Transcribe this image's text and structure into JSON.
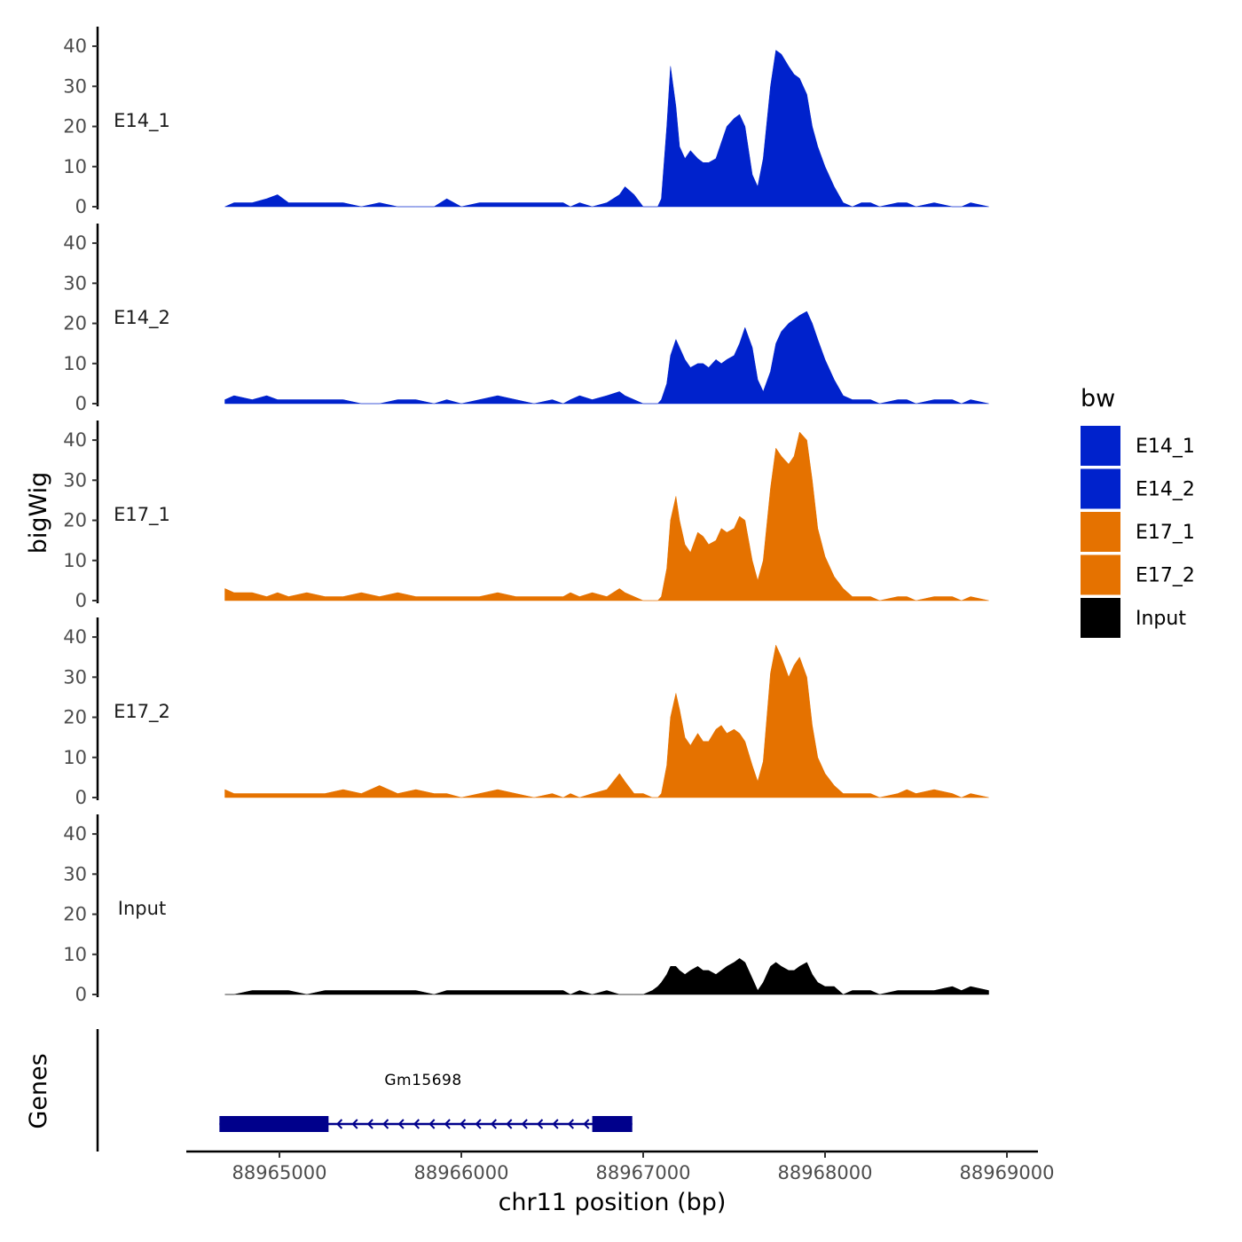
{
  "chart_data": {
    "type": "area",
    "title": "",
    "xlabel": "chr11 position (bp)",
    "ylabel": "bigWig",
    "genes_label": "Genes",
    "xlim": [
      88964470,
      88969150
    ],
    "ylim": [
      0,
      44
    ],
    "x_ticks": [
      88965000,
      88966000,
      88967000,
      88968000,
      88969000
    ],
    "x_tick_labels": [
      "88965000",
      "88966000",
      "88967000",
      "88968000",
      "88969000"
    ],
    "y_ticks": [
      0,
      10,
      20,
      30,
      40
    ],
    "y_tick_labels": [
      "0",
      "10",
      "20",
      "30",
      "40"
    ],
    "legend": {
      "title": "bw",
      "position": "right",
      "entries": [
        {
          "label": "E14_1",
          "color": "#0022CC"
        },
        {
          "label": "E14_2",
          "color": "#0022CC"
        },
        {
          "label": "E17_1",
          "color": "#E57200"
        },
        {
          "label": "E17_2",
          "color": "#E57200"
        },
        {
          "label": "Input",
          "color": "#000000"
        }
      ]
    },
    "series": [
      {
        "name": "E14_1",
        "color": "#0022CC",
        "x": [
          88964700,
          88964750,
          88964850,
          88964930,
          88964990,
          88965050,
          88965150,
          88965250,
          88965350,
          88965450,
          88965550,
          88965650,
          88965750,
          88965850,
          88965920,
          88966000,
          88966100,
          88966200,
          88966300,
          88966400,
          88966500,
          88966560,
          88966600,
          88966650,
          88966720,
          88966800,
          88966870,
          88966900,
          88966950,
          88967000,
          88967050,
          88967080,
          88967100,
          88967130,
          88967150,
          88967180,
          88967200,
          88967230,
          88967260,
          88967300,
          88967330,
          88967360,
          88967400,
          88967430,
          88967460,
          88967500,
          88967530,
          88967560,
          88967600,
          88967630,
          88967660,
          88967700,
          88967730,
          88967760,
          88967800,
          88967830,
          88967860,
          88967900,
          88967930,
          88967960,
          88968000,
          88968050,
          88968100,
          88968150,
          88968200,
          88968250,
          88968300,
          88968400,
          88968450,
          88968500,
          88968600,
          88968700,
          88968750,
          88968800,
          88968900
        ],
        "values": [
          0,
          1,
          1,
          2,
          3,
          1,
          1,
          1,
          1,
          0,
          1,
          0,
          0,
          0,
          2,
          0,
          1,
          1,
          1,
          1,
          1,
          1,
          0,
          1,
          0,
          1,
          3,
          5,
          3,
          0,
          0,
          0,
          2,
          20,
          35,
          25,
          15,
          12,
          14,
          12,
          11,
          11,
          12,
          16,
          20,
          22,
          23,
          20,
          8,
          5,
          12,
          30,
          39,
          38,
          35,
          33,
          32,
          28,
          20,
          15,
          10,
          5,
          1,
          0,
          1,
          1,
          0,
          1,
          1,
          0,
          1,
          0,
          0,
          1,
          0
        ]
      },
      {
        "name": "E14_2",
        "color": "#0022CC",
        "x": [
          88964700,
          88964750,
          88964850,
          88964930,
          88964990,
          88965050,
          88965150,
          88965250,
          88965350,
          88965450,
          88965550,
          88965650,
          88965750,
          88965850,
          88965920,
          88966000,
          88966100,
          88966200,
          88966300,
          88966400,
          88966500,
          88966560,
          88966600,
          88966650,
          88966720,
          88966800,
          88966870,
          88966900,
          88966950,
          88967000,
          88967050,
          88967080,
          88967100,
          88967130,
          88967150,
          88967180,
          88967200,
          88967230,
          88967260,
          88967300,
          88967330,
          88967360,
          88967400,
          88967430,
          88967460,
          88967500,
          88967530,
          88967560,
          88967600,
          88967630,
          88967660,
          88967700,
          88967730,
          88967760,
          88967800,
          88967830,
          88967860,
          88967900,
          88967930,
          88967960,
          88968000,
          88968050,
          88968100,
          88968150,
          88968200,
          88968250,
          88968300,
          88968400,
          88968450,
          88968500,
          88968600,
          88968700,
          88968750,
          88968800,
          88968900
        ],
        "values": [
          1,
          2,
          1,
          2,
          1,
          1,
          1,
          1,
          1,
          0,
          0,
          1,
          1,
          0,
          1,
          0,
          1,
          2,
          1,
          0,
          1,
          0,
          1,
          2,
          1,
          2,
          3,
          2,
          1,
          0,
          0,
          0,
          1,
          5,
          12,
          16,
          14,
          11,
          9,
          10,
          10,
          9,
          11,
          10,
          11,
          12,
          15,
          19,
          14,
          6,
          3,
          8,
          15,
          18,
          20,
          21,
          22,
          23,
          20,
          16,
          11,
          6,
          2,
          1,
          1,
          1,
          0,
          1,
          1,
          0,
          1,
          1,
          0,
          1,
          0
        ]
      },
      {
        "name": "E17_1",
        "color": "#E57200",
        "x": [
          88964700,
          88964750,
          88964850,
          88964930,
          88964990,
          88965050,
          88965150,
          88965250,
          88965350,
          88965450,
          88965550,
          88965650,
          88965750,
          88965850,
          88965920,
          88966000,
          88966100,
          88966200,
          88966300,
          88966400,
          88966500,
          88966560,
          88966600,
          88966650,
          88966720,
          88966800,
          88966870,
          88966900,
          88966950,
          88967000,
          88967050,
          88967080,
          88967100,
          88967130,
          88967150,
          88967180,
          88967200,
          88967230,
          88967260,
          88967300,
          88967330,
          88967360,
          88967400,
          88967430,
          88967460,
          88967500,
          88967530,
          88967560,
          88967600,
          88967630,
          88967660,
          88967700,
          88967730,
          88967760,
          88967800,
          88967830,
          88967860,
          88967900,
          88967930,
          88967960,
          88968000,
          88968050,
          88968100,
          88968150,
          88968200,
          88968250,
          88968300,
          88968400,
          88968450,
          88968500,
          88968600,
          88968700,
          88968750,
          88968800,
          88968900
        ],
        "values": [
          3,
          2,
          2,
          1,
          2,
          1,
          2,
          1,
          1,
          2,
          1,
          2,
          1,
          1,
          1,
          1,
          1,
          2,
          1,
          1,
          1,
          1,
          2,
          1,
          2,
          1,
          3,
          2,
          1,
          0,
          0,
          0,
          1,
          8,
          20,
          26,
          20,
          14,
          12,
          17,
          16,
          14,
          15,
          18,
          17,
          18,
          21,
          20,
          10,
          5,
          10,
          28,
          38,
          36,
          34,
          36,
          42,
          40,
          30,
          18,
          11,
          6,
          3,
          1,
          1,
          1,
          0,
          1,
          1,
          0,
          1,
          1,
          0,
          1,
          0
        ]
      },
      {
        "name": "E17_2",
        "color": "#E57200",
        "x": [
          88964700,
          88964750,
          88964850,
          88964930,
          88964990,
          88965050,
          88965150,
          88965250,
          88965350,
          88965450,
          88965550,
          88965650,
          88965750,
          88965850,
          88965920,
          88966000,
          88966100,
          88966200,
          88966300,
          88966400,
          88966500,
          88966560,
          88966600,
          88966650,
          88966720,
          88966800,
          88966870,
          88966900,
          88966950,
          88967000,
          88967050,
          88967080,
          88967100,
          88967130,
          88967150,
          88967180,
          88967200,
          88967230,
          88967260,
          88967300,
          88967330,
          88967360,
          88967400,
          88967430,
          88967460,
          88967500,
          88967530,
          88967560,
          88967600,
          88967630,
          88967660,
          88967700,
          88967730,
          88967760,
          88967800,
          88967830,
          88967860,
          88967900,
          88967930,
          88967960,
          88968000,
          88968050,
          88968100,
          88968150,
          88968200,
          88968250,
          88968300,
          88968400,
          88968450,
          88968500,
          88968600,
          88968700,
          88968750,
          88968800,
          88968900
        ],
        "values": [
          2,
          1,
          1,
          1,
          1,
          1,
          1,
          1,
          2,
          1,
          3,
          1,
          2,
          1,
          1,
          0,
          1,
          2,
          1,
          0,
          1,
          0,
          1,
          0,
          1,
          2,
          6,
          4,
          1,
          1,
          0,
          0,
          1,
          8,
          20,
          26,
          22,
          15,
          13,
          16,
          14,
          14,
          17,
          18,
          16,
          17,
          16,
          14,
          8,
          4,
          9,
          31,
          38,
          35,
          30,
          33,
          35,
          30,
          18,
          10,
          6,
          3,
          1,
          1,
          1,
          1,
          0,
          1,
          2,
          1,
          2,
          1,
          0,
          1,
          0
        ]
      },
      {
        "name": "Input",
        "color": "#000000",
        "x": [
          88964700,
          88964750,
          88964850,
          88964930,
          88964990,
          88965050,
          88965150,
          88965250,
          88965350,
          88965450,
          88965550,
          88965650,
          88965750,
          88965850,
          88965920,
          88966000,
          88966100,
          88966200,
          88966300,
          88966400,
          88966500,
          88966560,
          88966600,
          88966650,
          88966720,
          88966800,
          88966870,
          88966900,
          88966950,
          88967000,
          88967050,
          88967080,
          88967100,
          88967130,
          88967150,
          88967180,
          88967200,
          88967230,
          88967260,
          88967300,
          88967330,
          88967360,
          88967400,
          88967430,
          88967460,
          88967500,
          88967530,
          88967560,
          88967600,
          88967630,
          88967660,
          88967700,
          88967730,
          88967760,
          88967800,
          88967830,
          88967860,
          88967900,
          88967930,
          88967960,
          88968000,
          88968050,
          88968100,
          88968150,
          88968200,
          88968250,
          88968300,
          88968400,
          88968450,
          88968500,
          88968600,
          88968700,
          88968750,
          88968800,
          88968900
        ],
        "values": [
          0,
          0,
          1,
          1,
          1,
          1,
          0,
          1,
          1,
          1,
          1,
          1,
          1,
          0,
          1,
          1,
          1,
          1,
          1,
          1,
          1,
          1,
          0,
          1,
          0,
          1,
          0,
          0,
          0,
          0,
          1,
          2,
          3,
          5,
          7,
          7,
          6,
          5,
          6,
          7,
          6,
          6,
          5,
          6,
          7,
          8,
          9,
          8,
          4,
          1,
          3,
          7,
          8,
          7,
          6,
          6,
          7,
          8,
          5,
          3,
          2,
          2,
          0,
          1,
          1,
          1,
          0,
          1,
          1,
          1,
          1,
          2,
          1,
          2,
          1
        ]
      }
    ],
    "genes": [
      {
        "name": "Gm15698",
        "strand": "-",
        "start": 88964670,
        "end": 88966940,
        "exons": [
          [
            88964670,
            88965270
          ],
          [
            88966720,
            88966940
          ]
        ],
        "color": "#00008B"
      }
    ]
  }
}
